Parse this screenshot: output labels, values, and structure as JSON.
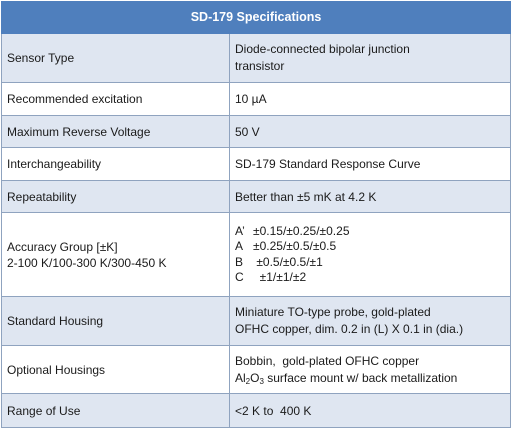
{
  "table": {
    "title": "SD-179 Specifications",
    "rows": {
      "sensor_type": {
        "label": "Sensor Type",
        "value_line1": "Diode-connected bipolar junction",
        "value_line2": "transistor"
      },
      "excitation": {
        "label": "Recommended excitation",
        "value": "10 µA"
      },
      "reverse_voltage": {
        "label": "Maximum Reverse Voltage",
        "value": "50 V"
      },
      "interchangeability": {
        "label": "Interchangeability",
        "value": "SD-179 Standard Response Curve"
      },
      "repeatability": {
        "label": "Repeatability",
        "value": "Better than ±5 mK at 4.2 K"
      },
      "accuracy": {
        "label_line1": "Accuracy Group [±K]",
        "label_line2": "2-100 K/100-300 K/300-450 K",
        "groups": [
          {
            "letter": "A’",
            "value": "±0.15/±0.25/±0.25"
          },
          {
            "letter": "A",
            "value": "±0.25/±0.5/±0.5"
          },
          {
            "letter": "B",
            "value": " ±0.5/±0.5/±1"
          },
          {
            "letter": "C",
            "value": "  ±1/±1/±2"
          }
        ]
      },
      "standard_housing": {
        "label": "Standard Housing",
        "value_line1": "Miniature TO-type probe, gold-plated",
        "value_line2": "OFHC copper, dim. 0.2 in (L) X 0.1 in (dia.)"
      },
      "optional_housings": {
        "label": "Optional Housings",
        "value_line1": "Bobbin,  gold-plated OFHC copper",
        "value_line2_prefix": "Al",
        "value_line2_sub1": "2",
        "value_line2_mid": "O",
        "value_line2_sub2": "3",
        "value_line2_suffix": " surface mount w/ back metallization"
      },
      "range": {
        "label": "Range of Use",
        "value": "<2 K to  400 K"
      }
    }
  }
}
